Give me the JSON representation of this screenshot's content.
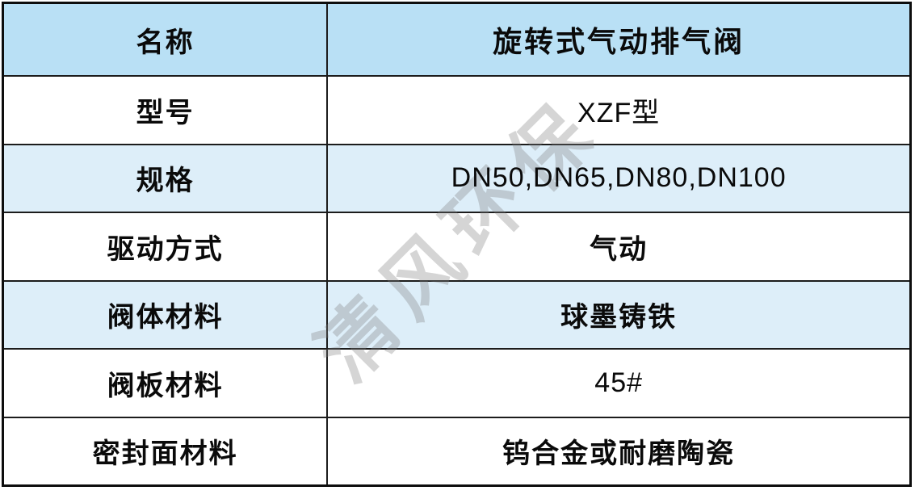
{
  "watermark": {
    "text": "清风环保"
  },
  "colors": {
    "header_blue": "#b9e0f5",
    "light_blue": "#ddeef9",
    "white": "#ffffff",
    "border": "#1c1c1c"
  },
  "table": {
    "rows": [
      {
        "label": "名称",
        "value": "旋转式气动排气阀",
        "bg": "header_blue",
        "value_weight": "bold"
      },
      {
        "label": "型号",
        "value": "XZF型",
        "bg": "white",
        "value_weight": "regular"
      },
      {
        "label": "规格",
        "value": "DN50,DN65,DN80,DN100",
        "bg": "light_blue",
        "value_weight": "regular"
      },
      {
        "label": "驱动方式",
        "value": "气动",
        "bg": "white",
        "value_weight": "bold"
      },
      {
        "label": "阀体材料",
        "value": "球墨铸铁",
        "bg": "light_blue",
        "value_weight": "bold"
      },
      {
        "label": "阀板材料",
        "value": "45#",
        "bg": "white",
        "value_weight": "regular"
      },
      {
        "label": "密封面材料",
        "value": "钨合金或耐磨陶瓷",
        "bg": "white",
        "value_weight": "bold"
      }
    ]
  }
}
